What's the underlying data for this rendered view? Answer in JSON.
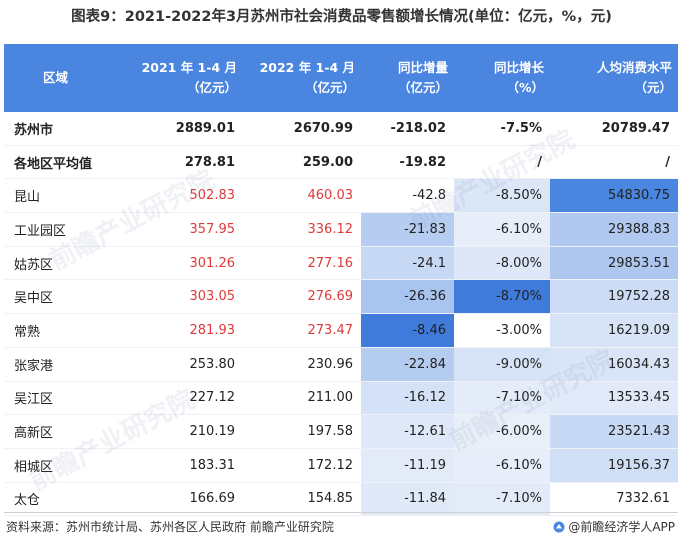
{
  "title": "图表9：2021-2022年3月苏州市社会消费品零售额增长情况(单位：亿元，%，元)",
  "header": {
    "col0": "区域",
    "col1": [
      "2021 年 1-4 月",
      "（亿元）"
    ],
    "col2": [
      "2022 年 1-4 月",
      "（亿元）"
    ],
    "col3": [
      "同比增量",
      "（亿元）"
    ],
    "col4": [
      "同比增长",
      "（%）"
    ],
    "col5": [
      "人均消费水平",
      "（元）"
    ]
  },
  "rows": [
    {
      "region": "苏州市",
      "v2021": "2889.01",
      "v2022": "2670.99",
      "delta": "-218.02",
      "growth": "-7.5%",
      "per_capita": "20789.47",
      "bold": true,
      "red": false
    },
    {
      "region": "各地区平均值",
      "v2021": "278.81",
      "v2022": "259.00",
      "delta": "-19.82",
      "growth": "/",
      "per_capita": "/",
      "bold": true,
      "red": false
    },
    {
      "region": "昆山",
      "v2021": "502.83",
      "v2022": "460.03",
      "delta": "-42.8",
      "growth": "-8.50%",
      "per_capita": "54830.75",
      "bold": false,
      "red": true
    },
    {
      "region": "工业园区",
      "v2021": "357.95",
      "v2022": "336.12",
      "delta": "-21.83",
      "growth": "-6.10%",
      "per_capita": "29388.83",
      "bold": false,
      "red": true
    },
    {
      "region": "姑苏区",
      "v2021": "301.26",
      "v2022": "277.16",
      "delta": "-24.1",
      "growth": "-8.00%",
      "per_capita": "29853.51",
      "bold": false,
      "red": true
    },
    {
      "region": "吴中区",
      "v2021": "303.05",
      "v2022": "276.69",
      "delta": "-26.36",
      "growth": "-8.70%",
      "per_capita": "19752.28",
      "bold": false,
      "red": true
    },
    {
      "region": "常熟",
      "v2021": "281.93",
      "v2022": "273.47",
      "delta": "-8.46",
      "growth": "-3.00%",
      "per_capita": "16219.09",
      "bold": false,
      "red": true
    },
    {
      "region": "张家港",
      "v2021": "253.80",
      "v2022": "230.96",
      "delta": "-22.84",
      "growth": "-9.00%",
      "per_capita": "16034.43",
      "bold": false,
      "red": false
    },
    {
      "region": "吴江区",
      "v2021": "227.12",
      "v2022": "211.00",
      "delta": "-16.12",
      "growth": "-7.10%",
      "per_capita": "13533.45",
      "bold": false,
      "red": false
    },
    {
      "region": "高新区",
      "v2021": "210.19",
      "v2022": "197.58",
      "delta": "-12.61",
      "growth": "-6.00%",
      "per_capita": "23521.43",
      "bold": false,
      "red": false
    },
    {
      "region": "相城区",
      "v2021": "183.31",
      "v2022": "172.12",
      "delta": "-11.19",
      "growth": "-6.10%",
      "per_capita": "19156.37",
      "bold": false,
      "red": false
    },
    {
      "region": "太仓",
      "v2021": "166.69",
      "v2022": "154.85",
      "delta": "-11.84",
      "growth": "-7.10%",
      "per_capita": "7332.61",
      "bold": false,
      "red": false
    }
  ],
  "heat": {
    "delta": [
      null,
      null,
      "#ffffff",
      "#b6cdf1",
      "#c6d8f4",
      "#a9c4ee",
      "#3e7bdb",
      "#b4ccf0",
      "#d4e1f6",
      "#dfe8f8",
      "#e3ebf9",
      "#e0e9f8"
    ],
    "growth": [
      null,
      null,
      "#dbe6f7",
      "#e7eefa",
      "#dde7f8",
      "#3e7bdb",
      "#ffffff",
      "#d6e3f7",
      "#e4ecf9",
      "#e8eff9",
      "#e7eefa",
      "#e3ebf9"
    ],
    "per_capita": [
      null,
      null,
      "#4a86e0",
      "#b1c9f0",
      "#aec7ef",
      "#cddcf5",
      "#d7e4f7",
      "#d9e5f7",
      "#e2eaf9",
      "#c7d9f4",
      "#d1dff6",
      "#ffffff"
    ]
  },
  "source": "资料来源：苏州市统计局、苏州各区人民政府 前瞻产业研究院",
  "brand": "@前瞻经济学人APP",
  "watermark": "前瞻产业研究院",
  "colors": {
    "header": "#4a86e0",
    "red_text": "#e03a3a"
  }
}
